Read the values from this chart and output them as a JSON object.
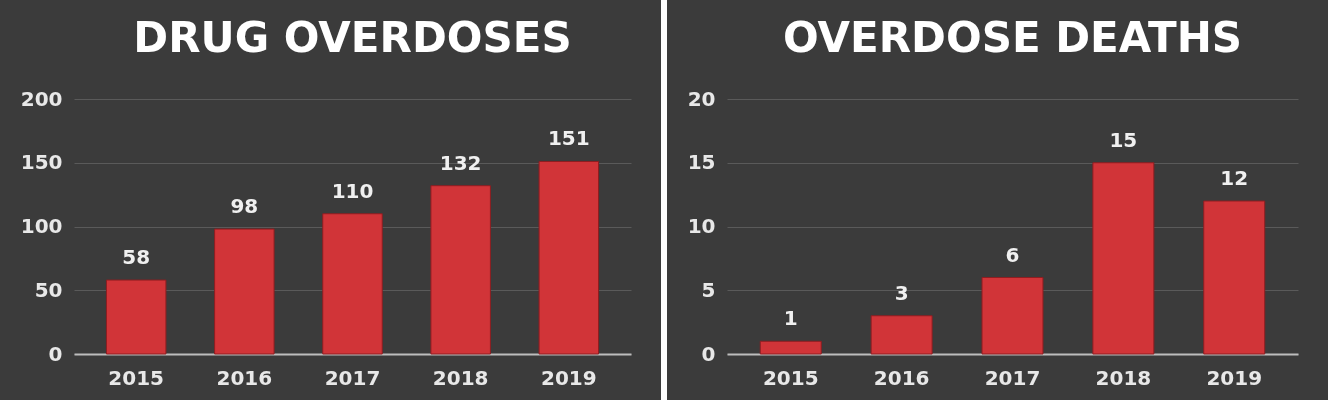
{
  "chart_data": [
    {
      "type": "bar",
      "title": "DRUG OVERDOSES",
      "categories": [
        "2015",
        "2016",
        "2017",
        "2018",
        "2019"
      ],
      "values": [
        58,
        98,
        110,
        132,
        151
      ],
      "color": "#d13438",
      "ylim": [
        0,
        200
      ],
      "yticks": [
        0,
        50,
        100,
        150,
        200
      ],
      "grid": "y",
      "data_labels": true
    },
    {
      "type": "bar",
      "title": "OVERDOSE DEATHS",
      "categories": [
        "2015",
        "2016",
        "2017",
        "2018",
        "2019"
      ],
      "values": [
        1,
        3,
        6,
        15,
        12
      ],
      "color": "#d13438",
      "ylim": [
        0,
        20
      ],
      "yticks": [
        0,
        5,
        10,
        15,
        20
      ],
      "grid": "y",
      "data_labels": true
    }
  ]
}
